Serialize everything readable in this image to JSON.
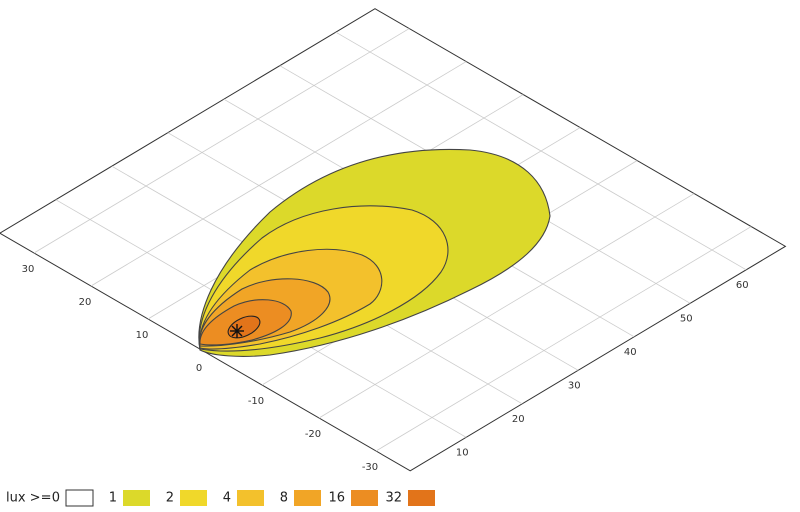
{
  "chart_data": {
    "type": "isolux",
    "legend_title": "lux >=",
    "levels": [
      0,
      1,
      2,
      4,
      8,
      16,
      32
    ],
    "colors": [
      "#ffffff",
      "#dcd92a",
      "#f0d82a",
      "#f3c12c",
      "#f1a526",
      "#ec8d22",
      "#e2741a"
    ],
    "xlim": [
      0,
      67
    ],
    "ylim": [
      -36,
      36
    ],
    "xticks": [
      10,
      20,
      30,
      40,
      50,
      60
    ],
    "yticks": [
      -30,
      -20,
      -10,
      0,
      10,
      20,
      30
    ],
    "grid": true
  }
}
